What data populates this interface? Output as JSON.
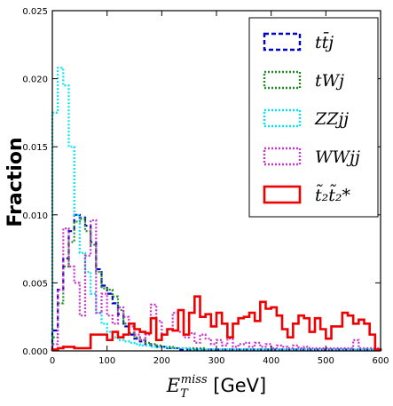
{
  "chart_data": {
    "type": "line",
    "step": true,
    "xlabel": "E_T^miss [GeV]",
    "xlabel_parts": {
      "main": "E",
      "sub": "T",
      "sup": "miss",
      "unit": " [GeV]"
    },
    "ylabel": "Fraction",
    "xlim": [
      0,
      600
    ],
    "ylim": [
      0,
      0.025
    ],
    "x_ticks": [
      "0",
      "100",
      "200",
      "300",
      "400",
      "500",
      "600"
    ],
    "y_ticks": [
      "0.000",
      "0.005",
      "0.010",
      "0.015",
      "0.020",
      "0.025"
    ],
    "legend_position": "upper right",
    "bin_edges_start": 0,
    "bin_width": 10,
    "series": [
      {
        "name": "tt̄j",
        "color": "#0000cc",
        "linestyle": "dashed",
        "values": [
          0.0015,
          0.0045,
          0.0068,
          0.0088,
          0.01,
          0.0098,
          0.0092,
          0.008,
          0.006,
          0.0048,
          0.0042,
          0.0035,
          0.0027,
          0.0018,
          0.0012,
          0.0009,
          0.0007,
          0.0005,
          0.0004,
          0.0003,
          0.0003,
          0.0002,
          0.0002,
          0.0001,
          0.0001,
          0.0001,
          0.0001,
          0.0001,
          0.0001,
          0.0001,
          0.0001,
          0.0001,
          0.0001,
          0.0001,
          0.0001,
          0.0001,
          0.0001,
          0.0001,
          0.0001,
          0.0001,
          0.0001,
          0.0001,
          0.0001,
          0.0001,
          0.0001,
          0.0001,
          0.0001,
          0.0001,
          0.0001,
          0.0001,
          0.0001,
          0.0001,
          0.0001,
          0.0001,
          0.0001,
          0.0001,
          0.0001,
          0.0001,
          0.0001,
          0.0001
        ]
      },
      {
        "name": "tWj",
        "color": "#228b22",
        "linestyle": "dotted",
        "values": [
          0.001,
          0.0035,
          0.0062,
          0.008,
          0.0095,
          0.0097,
          0.0088,
          0.0078,
          0.0058,
          0.0046,
          0.0045,
          0.004,
          0.003,
          0.002,
          0.0013,
          0.001,
          0.0008,
          0.0006,
          0.0005,
          0.0004,
          0.0003,
          0.0003,
          0.0002,
          0.0002,
          0.0002,
          0.0002,
          0.0002,
          0.0002,
          0.0001,
          0.0001,
          0.0001,
          0.0001,
          0.0001,
          0.0001,
          0.0001,
          0.0001,
          0.0001,
          0.0001,
          0.0001,
          0.0001,
          0.0001,
          0.0001,
          0.0001,
          0.0001,
          0.0001,
          0.0001,
          0.0001,
          0.0001,
          0.0001,
          0.0001,
          0.0001,
          0.0001,
          0.0001,
          0.0001,
          0.0001,
          0.0001,
          0.0001,
          0.0001,
          0.0001,
          0.0001
        ]
      },
      {
        "name": "ZZjj",
        "color": "#00e5ee",
        "linestyle": "dotted",
        "values": [
          0.0175,
          0.0208,
          0.0195,
          0.015,
          0.01,
          0.0072,
          0.0058,
          0.0042,
          0.0028,
          0.002,
          0.0014,
          0.001,
          0.0008,
          0.0007,
          0.0006,
          0.0005,
          0.0004,
          0.0004,
          0.0003,
          0.0003,
          0.0003,
          0.0002,
          0.0002,
          0.0002,
          0.0002,
          0.0001,
          0.0001,
          0.0001,
          0.0001,
          0.0001,
          0.0001,
          0.0001,
          0.0001,
          0.0001,
          0.0001,
          0.0001,
          0.0001,
          0.0001,
          0.0001,
          0.0001,
          0.0001,
          0.0001,
          0.0001,
          0.0001,
          0.0001,
          0.0001,
          0.0001,
          0.0001,
          0.0001,
          0.0001,
          0.0001,
          0.0001,
          0.0001,
          0.0001,
          0.0001,
          0.0001,
          0.0001,
          0.0001,
          0.0001,
          0.0001
        ]
      },
      {
        "name": "WWjj",
        "color": "#cc33cc",
        "linestyle": "dotted",
        "values": [
          0.0005,
          0.0045,
          0.009,
          0.0062,
          0.005,
          0.0026,
          0.007,
          0.0096,
          0.0028,
          0.0042,
          0.0026,
          0.002,
          0.0032,
          0.0025,
          0.0018,
          0.0012,
          0.0008,
          0.0012,
          0.0034,
          0.0022,
          0.0012,
          0.0016,
          0.0028,
          0.0014,
          0.001,
          0.0013,
          0.0006,
          0.0012,
          0.0009,
          0.0005,
          0.0008,
          0.0004,
          0.0009,
          0.0003,
          0.0005,
          0.0006,
          0.0003,
          0.0006,
          0.0003,
          0.0005,
          0.0002,
          0.0004,
          0.0003,
          0.0002,
          0.0004,
          0.0002,
          0.0003,
          0.0002,
          0.0002,
          0.0002,
          0.0002,
          0.0002,
          0.0002,
          0.0002,
          0.0002,
          0.0008,
          0.0002,
          0.0002,
          0.0002,
          0.0002
        ]
      },
      {
        "name": "t̃₂t̃₂*",
        "color": "#ee0000",
        "linestyle": "solid",
        "values": [
          0.0001,
          0.0002,
          0.0003,
          0.0003,
          0.0002,
          0.0002,
          0.0002,
          0.0012,
          0.0012,
          0.0012,
          0.0008,
          0.0014,
          0.001,
          0.0012,
          0.002,
          0.0016,
          0.0014,
          0.0013,
          0.0024,
          0.0008,
          0.0012,
          0.0016,
          0.0015,
          0.003,
          0.0012,
          0.0028,
          0.004,
          0.0025,
          0.0027,
          0.0018,
          0.0028,
          0.002,
          0.001,
          0.002,
          0.0024,
          0.0025,
          0.0028,
          0.0022,
          0.0036,
          0.0031,
          0.0032,
          0.0026,
          0.0016,
          0.001,
          0.002,
          0.0026,
          0.0024,
          0.0014,
          0.0024,
          0.0016,
          0.0009,
          0.0018,
          0.0018,
          0.0028,
          0.0026,
          0.002,
          0.0023,
          0.002,
          0.0012,
          0.0001
        ]
      }
    ]
  }
}
